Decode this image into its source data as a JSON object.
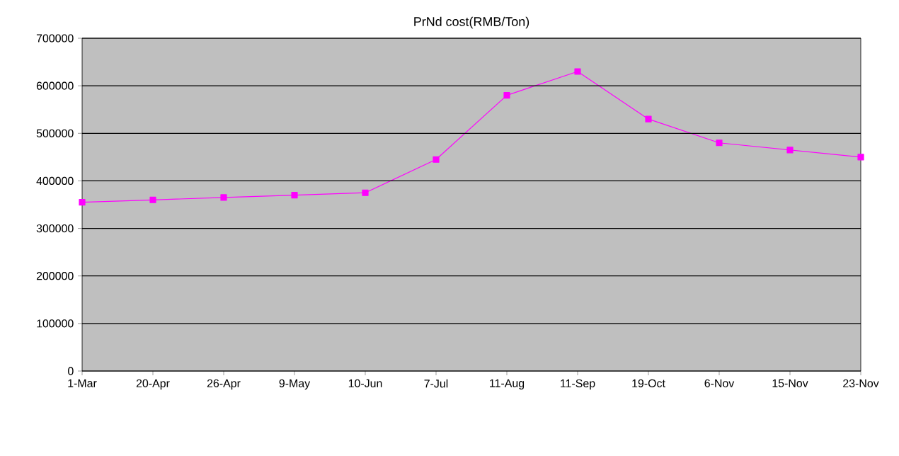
{
  "chart_data": {
    "type": "line",
    "title": "PrNd cost(RMB/Ton)",
    "categories": [
      "1-Mar",
      "20-Apr",
      "26-Apr",
      "9-May",
      "10-Jun",
      "7-Jul",
      "11-Aug",
      "11-Sep",
      "19-Oct",
      "6-Nov",
      "15-Nov",
      "23-Nov"
    ],
    "values": [
      355000,
      360000,
      365000,
      370000,
      375000,
      445000,
      580000,
      630000,
      530000,
      480000,
      465000,
      450000
    ],
    "color": "#ff00ff",
    "marker": "square",
    "grid": "y",
    "ylim": [
      0,
      700000
    ],
    "yticks": [
      0,
      100000,
      200000,
      300000,
      400000,
      500000,
      600000,
      700000
    ]
  }
}
